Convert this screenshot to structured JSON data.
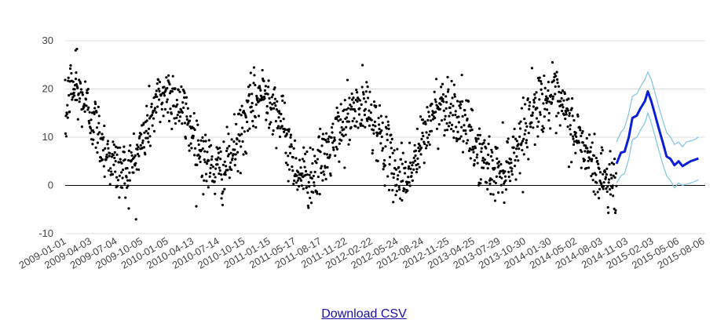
{
  "chart_data": {
    "type": "scatter",
    "title": "",
    "xlabel": "",
    "ylabel": "",
    "x_range": [
      "2009-01-01",
      "2015-09-20"
    ],
    "ylim": [
      -10,
      30
    ],
    "y_ticks": [
      -10,
      0,
      10,
      20,
      30
    ],
    "x_ticks": [
      "2009-01-01",
      "2009-04-03",
      "2009-07-04",
      "2009-10-05",
      "2010-01-05",
      "2010-04-13",
      "2010-07-14",
      "2010-10-15",
      "2011-01-15",
      "2011-05-17",
      "2011-08-17",
      "2011-11-22",
      "2012-02-22",
      "2012-05-24",
      "2012-08-24",
      "2012-11-25",
      "2013-04-25",
      "2013-07-29",
      "2013-10-30",
      "2014-01-30",
      "2014-05-02",
      "2014-08-03",
      "2014-11-03",
      "2015-02-03",
      "2015-05-06",
      "2015-08-06"
    ],
    "grid": true,
    "legend": "none",
    "zero_line": true,
    "colors": {
      "observed": "#000000",
      "forecast": "#0a1fd9",
      "bounds": "#7ec3e6",
      "grid": "#dddddd"
    },
    "series": [
      {
        "kind": "observed-scatter",
        "model": "seasonal",
        "x_start": "2009-01-01",
        "x_end": "2014-10-15",
        "points_per_week": 5,
        "seasonal_mean": [
          13,
          9,
          4,
          2,
          6,
          14
        ],
        "seasonal_peaks": [
          {
            "x": "2009-01-20",
            "y": 20
          },
          {
            "x": "2010-01-25",
            "y": 19
          },
          {
            "x": "2011-02-05",
            "y": 19
          },
          {
            "x": "2012-02-15",
            "y": 16
          },
          {
            "x": "2012-12-20",
            "y": 17
          },
          {
            "x": "2014-01-20",
            "y": 18
          }
        ],
        "seasonal_troughs": [
          {
            "x": "2009-08-15",
            "y": 3
          },
          {
            "x": "2010-08-10",
            "y": 3
          },
          {
            "x": "2011-07-10",
            "y": 2
          },
          {
            "x": "2012-07-20",
            "y": 2
          },
          {
            "x": "2013-07-15",
            "y": 3
          },
          {
            "x": "2014-09-25",
            "y": 1
          }
        ],
        "spread": 3.2,
        "outliers": [
          {
            "x": "2009-02-15",
            "y": 28.3
          },
          {
            "x": "2009-02-10",
            "y": 28
          }
        ]
      },
      {
        "kind": "forecast-mean",
        "points": [
          {
            "x": "2014-10-15",
            "y": 4.5
          },
          {
            "x": "2014-11-01",
            "y": 6.8
          },
          {
            "x": "2014-11-15",
            "y": 7
          },
          {
            "x": "2014-12-01",
            "y": 10
          },
          {
            "x": "2014-12-15",
            "y": 14
          },
          {
            "x": "2015-01-01",
            "y": 14.5
          },
          {
            "x": "2015-01-15",
            "y": 16
          },
          {
            "x": "2015-02-01",
            "y": 17.5
          },
          {
            "x": "2015-02-12",
            "y": 19.5
          },
          {
            "x": "2015-02-25",
            "y": 17.5
          },
          {
            "x": "2015-03-10",
            "y": 15
          },
          {
            "x": "2015-03-25",
            "y": 12
          },
          {
            "x": "2015-04-10",
            "y": 9
          },
          {
            "x": "2015-04-25",
            "y": 6
          },
          {
            "x": "2015-05-10",
            "y": 5.5
          },
          {
            "x": "2015-05-25",
            "y": 4.2
          },
          {
            "x": "2015-06-10",
            "y": 5
          },
          {
            "x": "2015-06-25",
            "y": 4
          },
          {
            "x": "2015-07-10",
            "y": 4.5
          },
          {
            "x": "2015-07-25",
            "y": 5
          },
          {
            "x": "2015-08-10",
            "y": 5.3
          },
          {
            "x": "2015-08-25",
            "y": 5.6
          }
        ]
      },
      {
        "kind": "forecast-upper",
        "points": [
          {
            "x": "2014-10-15",
            "y": 9
          },
          {
            "x": "2014-11-01",
            "y": 11
          },
          {
            "x": "2014-11-15",
            "y": 12
          },
          {
            "x": "2014-12-01",
            "y": 15
          },
          {
            "x": "2014-12-15",
            "y": 18.5
          },
          {
            "x": "2015-01-01",
            "y": 19
          },
          {
            "x": "2015-01-15",
            "y": 20.5
          },
          {
            "x": "2015-02-01",
            "y": 22
          },
          {
            "x": "2015-02-12",
            "y": 23.5
          },
          {
            "x": "2015-02-25",
            "y": 22
          },
          {
            "x": "2015-03-10",
            "y": 19.5
          },
          {
            "x": "2015-03-25",
            "y": 16.5
          },
          {
            "x": "2015-04-10",
            "y": 13.5
          },
          {
            "x": "2015-04-25",
            "y": 11
          },
          {
            "x": "2015-05-10",
            "y": 10
          },
          {
            "x": "2015-05-25",
            "y": 8.5
          },
          {
            "x": "2015-06-10",
            "y": 9
          },
          {
            "x": "2015-06-25",
            "y": 8
          },
          {
            "x": "2015-07-10",
            "y": 9
          },
          {
            "x": "2015-07-25",
            "y": 9.2
          },
          {
            "x": "2015-08-10",
            "y": 9.5
          },
          {
            "x": "2015-08-25",
            "y": 10
          }
        ]
      },
      {
        "kind": "forecast-lower",
        "points": [
          {
            "x": "2014-10-15",
            "y": 0.5
          },
          {
            "x": "2014-11-01",
            "y": 2
          },
          {
            "x": "2014-11-15",
            "y": 2.5
          },
          {
            "x": "2014-12-01",
            "y": 5.5
          },
          {
            "x": "2014-12-15",
            "y": 9.5
          },
          {
            "x": "2015-01-01",
            "y": 10
          },
          {
            "x": "2015-01-15",
            "y": 11.5
          },
          {
            "x": "2015-02-01",
            "y": 13
          },
          {
            "x": "2015-02-12",
            "y": 15
          },
          {
            "x": "2015-02-25",
            "y": 13
          },
          {
            "x": "2015-03-10",
            "y": 10.5
          },
          {
            "x": "2015-03-25",
            "y": 7.5
          },
          {
            "x": "2015-04-10",
            "y": 4.5
          },
          {
            "x": "2015-04-25",
            "y": 2
          },
          {
            "x": "2015-05-10",
            "y": 1
          },
          {
            "x": "2015-05-25",
            "y": -0.5
          },
          {
            "x": "2015-06-10",
            "y": 0.5
          },
          {
            "x": "2015-06-25",
            "y": 0
          },
          {
            "x": "2015-07-10",
            "y": 0.3
          },
          {
            "x": "2015-07-25",
            "y": 0.5
          },
          {
            "x": "2015-08-10",
            "y": 0.8
          },
          {
            "x": "2015-08-25",
            "y": 1.2
          }
        ]
      }
    ]
  },
  "download": {
    "label": "Download CSV"
  }
}
